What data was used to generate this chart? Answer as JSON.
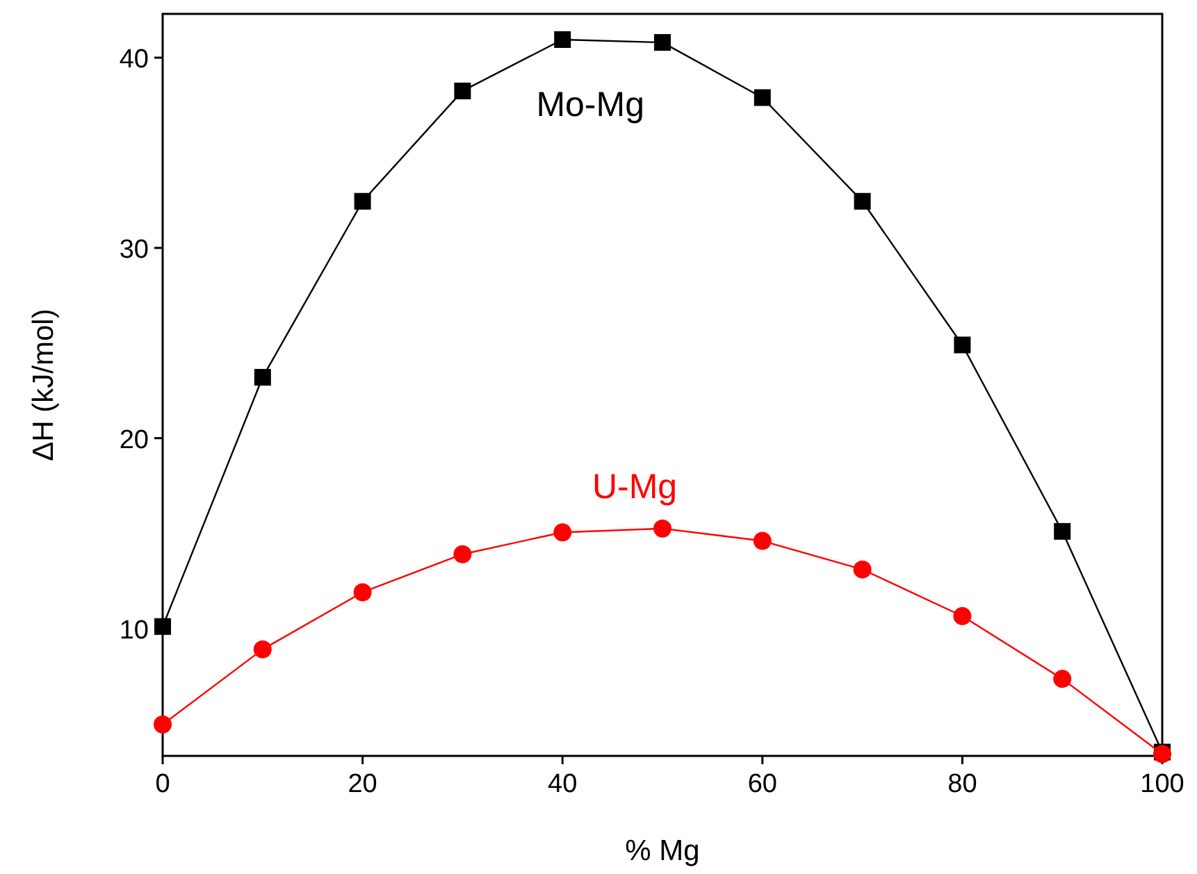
{
  "chart_data": {
    "type": "line",
    "xlabel": "% Mg",
    "ylabel": "ΔH (kJ/mol)",
    "x": [
      0,
      10,
      20,
      30,
      40,
      50,
      60,
      70,
      80,
      90,
      100
    ],
    "xlim": [
      0,
      100
    ],
    "xticks": [
      0,
      20,
      40,
      60,
      80,
      100
    ],
    "ylim": [
      3.3,
      42.3
    ],
    "yticks": [
      10,
      20,
      30,
      40
    ],
    "grid": false,
    "series": [
      {
        "name": "Mo-Mg",
        "color": "#000000",
        "marker": "square",
        "values": [
          10.1,
          23.2,
          32.45,
          38.25,
          40.95,
          40.8,
          37.9,
          32.45,
          24.9,
          15.1,
          3.5
        ]
      },
      {
        "name": "U-Mg",
        "color": "#ff0000",
        "marker": "circle",
        "values": [
          4.95,
          8.9,
          11.9,
          13.9,
          15.05,
          15.25,
          14.6,
          13.1,
          10.65,
          7.35,
          3.4
        ]
      }
    ]
  }
}
